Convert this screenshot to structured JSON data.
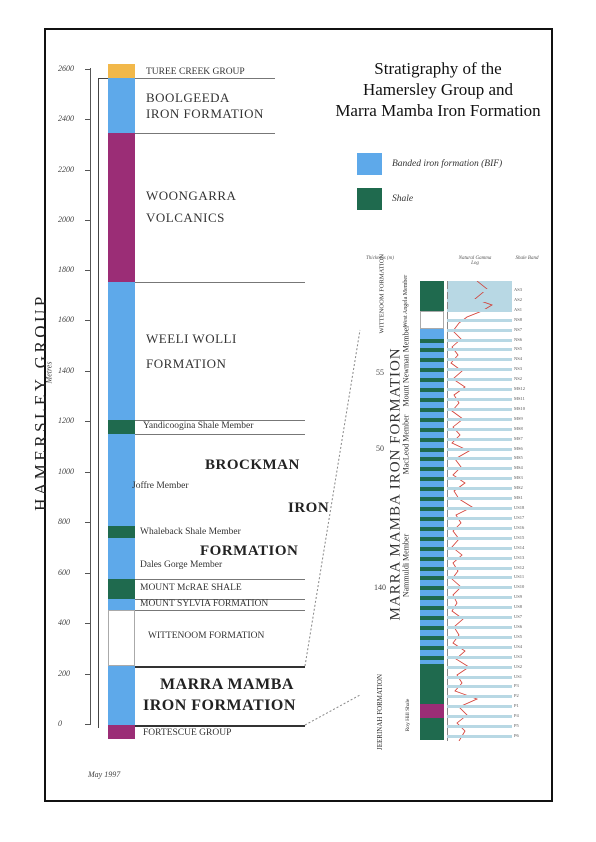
{
  "title": [
    "Stratigraphy of the",
    "Hamersley Group and",
    "Marra Mamba Iron Formation"
  ],
  "axis": {
    "unit_label": "Metres",
    "ticks": [
      "2600",
      "2400",
      "2200",
      "2000",
      "1800",
      "1600",
      "1400",
      "1200",
      "1000",
      "800",
      "600",
      "400",
      "200",
      "0"
    ]
  },
  "group_label": "HAMERSLEY GROUP",
  "units": {
    "turee_creek": "TUREE CREEK GROUP",
    "boolgeeda_1": "BOOLGEEDA",
    "boolgeeda_2": "IRON FORMATION",
    "woongarra_1": "WOONGARRA",
    "woongarra_2": "VOLCANICS",
    "weeli_1": "WEELI WOLLI",
    "weeli_2": "FORMATION",
    "yandicoogina": "Yandicoogina Shale Member",
    "brockman_1": "BROCKMAN",
    "joffre": "Joffre Member",
    "brockman_2": "IRON",
    "whaleback": "Whaleback Shale Member",
    "brockman_3": "FORMATION",
    "dales": "Dales Gorge Member",
    "mcrae": "MOUNT McRAE SHALE",
    "sylvia": "MOUNT SYLVIA FORMATION",
    "wittenoom": "WITTENOOM FORMATION",
    "marra_1": "MARRA MAMBA",
    "marra_2": "IRON FORMATION",
    "fortescue": "FORTESCUE GROUP"
  },
  "legend": {
    "bif": "Banded iron formation (BIF)",
    "shale": "Shale",
    "bif_color": "#5ea9ea",
    "shale_color": "#1f6a4e",
    "volcanic_color": "#9b2d76",
    "turee_color": "#f2b84a"
  },
  "log": {
    "head_thickness": "Thickness (m)",
    "head_gamma": "Natural Gamma Log",
    "head_shale": "Shale Band",
    "thickness_marks": [
      "55",
      "50",
      "140"
    ],
    "formation": "MARRA MAMBA IRON FORMATION",
    "wittenoom": "WITTENOOM FORMATION",
    "west_angela": "West Angela Member",
    "mount_newman": "Mount Newman Member",
    "macleod": "MacLeod Member",
    "nammuldi": "Nammuldi Member",
    "jeerinah": "JEERINAH FORMATION",
    "roy_hill": "Roy Hill Shale",
    "shale_bands": [
      "AS3",
      "AS2",
      "AS1",
      "NS8",
      "NS7",
      "NS6",
      "NS5",
      "NS4",
      "NS3",
      "NS2",
      "MS12",
      "MS11",
      "MS10",
      "MS9",
      "MS8",
      "MS7",
      "MS6",
      "MS5",
      "MS4",
      "MS3",
      "MS2",
      "MS1",
      "US18",
      "US17",
      "US16",
      "US15",
      "US14",
      "US13",
      "US12",
      "US11",
      "US10",
      "US9",
      "US8",
      "US7",
      "US6",
      "US5",
      "US4",
      "US3",
      "US2",
      "US1",
      "P3",
      "P2",
      "P1",
      "P4",
      "P5",
      "P6"
    ]
  },
  "date": "May 1997"
}
